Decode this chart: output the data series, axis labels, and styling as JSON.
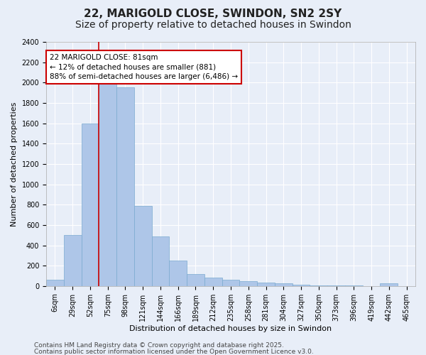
{
  "title1": "22, MARIGOLD CLOSE, SWINDON, SN2 2SY",
  "title2": "Size of property relative to detached houses in Swindon",
  "xlabel": "Distribution of detached houses by size in Swindon",
  "ylabel": "Number of detached properties",
  "footer1": "Contains HM Land Registry data © Crown copyright and database right 2025.",
  "footer2": "Contains public sector information licensed under the Open Government Licence v3.0.",
  "annotation_title": "22 MARIGOLD CLOSE: 81sqm",
  "annotation_line1": "← 12% of detached houses are smaller (881)",
  "annotation_line2": "88% of semi-detached houses are larger (6,486) →",
  "bar_heights": [
    60,
    500,
    1600,
    2000,
    1950,
    790,
    490,
    250,
    120,
    80,
    60,
    45,
    35,
    30,
    10,
    8,
    5,
    3,
    2,
    30
  ],
  "bar_color": "#aec6e8",
  "bar_edge_color": "#7aaad0",
  "background_color": "#e8eef8",
  "grid_color": "#ffffff",
  "vline_bar_index": 2,
  "vline_color": "#cc0000",
  "ylim": [
    0,
    2400
  ],
  "yticks": [
    0,
    200,
    400,
    600,
    800,
    1000,
    1200,
    1400,
    1600,
    1800,
    2000,
    2200,
    2400
  ],
  "xtick_labels": [
    "6sqm",
    "29sqm",
    "52sqm",
    "75sqm",
    "98sqm",
    "121sqm",
    "144sqm",
    "166sqm",
    "189sqm",
    "212sqm",
    "235sqm",
    "258sqm",
    "281sqm",
    "304sqm",
    "327sqm",
    "350sqm",
    "373sqm",
    "396sqm",
    "419sqm",
    "442sqm",
    "465sqm"
  ],
  "annotation_box_facecolor": "#ffffff",
  "annotation_box_edgecolor": "#cc0000",
  "title_fontsize": 11,
  "subtitle_fontsize": 10,
  "axis_label_fontsize": 8,
  "tick_fontsize": 7,
  "annotation_fontsize": 7.5,
  "footer_fontsize": 6.5
}
